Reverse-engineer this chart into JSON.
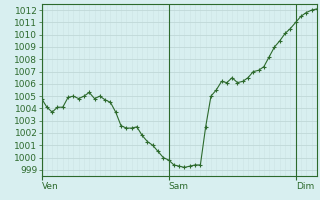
{
  "background_color": "#d8eff0",
  "plot_bg_color": "#d8eff0",
  "line_color": "#2d6a2d",
  "marker_color": "#2d6a2d",
  "grid_color_major": "#c0d8d8",
  "grid_color_minor": "#cce4e4",
  "tick_label_color": "#2d6a2d",
  "axis_color": "#2d6a2d",
  "ylim": [
    998.5,
    1012.5
  ],
  "yticks": [
    999,
    1000,
    1001,
    1002,
    1003,
    1004,
    1005,
    1006,
    1007,
    1008,
    1009,
    1010,
    1011,
    1012
  ],
  "xtick_labels": [
    "Ven",
    "Sam",
    "Dim"
  ],
  "xtick_positions": [
    0,
    24,
    48
  ],
  "n_total": 72,
  "y_values": [
    1004.8,
    1004.1,
    1003.7,
    1004.1,
    1004.1,
    1004.9,
    1005.0,
    1004.8,
    1005.0,
    1005.3,
    1004.8,
    1005.0,
    1004.7,
    1004.5,
    1003.7,
    1002.6,
    1002.4,
    1002.4,
    1002.5,
    1001.8,
    1001.3,
    1001.0,
    1000.5,
    1000.0,
    999.8,
    999.4,
    999.3,
    999.2,
    999.3,
    999.4,
    999.4,
    1002.5,
    1005.0,
    1005.5,
    1006.2,
    1006.1,
    1006.5,
    1006.1,
    1006.2,
    1006.5,
    1007.0,
    1007.1,
    1007.4,
    1008.2,
    1009.0,
    1009.5,
    1010.1,
    1010.5,
    1011.0,
    1011.5,
    1011.8,
    1012.0,
    1012.1
  ]
}
